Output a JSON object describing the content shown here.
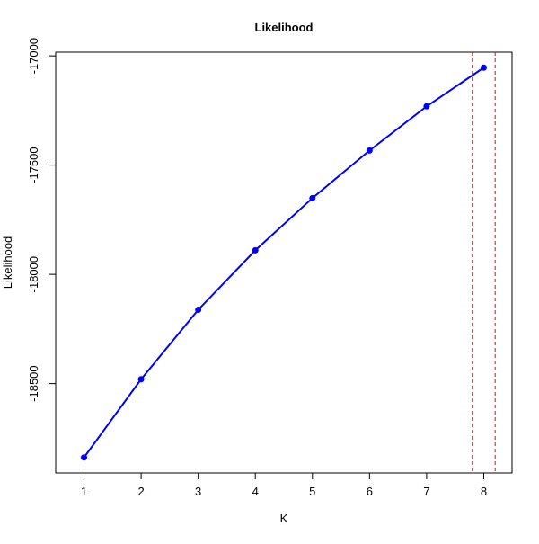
{
  "chart_data": {
    "type": "line",
    "title": "Likelihood",
    "x_label": "K",
    "y_label": "Likelihood",
    "x": [
      1,
      2,
      3,
      4,
      5,
      6,
      7,
      8
    ],
    "series": [
      {
        "name": "Likelihood",
        "color": "#0000ff",
        "values": [
          -18838,
          -18480,
          -18162,
          -17890,
          -17651,
          -17433,
          -17231,
          -17054
        ]
      }
    ],
    "xlim": [
      0.504,
      8.496
    ],
    "xticks": [
      1,
      2,
      3,
      4,
      5,
      6,
      7,
      8
    ],
    "ylim": [
      -18909,
      -16983
    ],
    "yticks": [
      -18500,
      -18000,
      -17500,
      -17000
    ],
    "vlines": [
      7.8,
      8.2
    ],
    "vline_color": "#ff0000",
    "markers": true
  }
}
